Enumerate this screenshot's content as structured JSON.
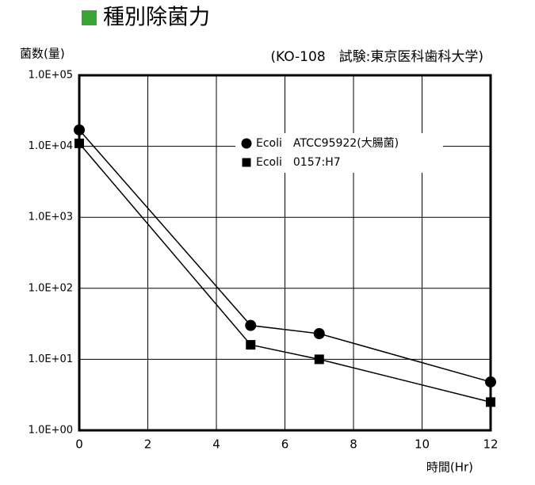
{
  "chart_data": {
    "type": "line",
    "title": "種別除菌力",
    "subtitle": "(KO-108　試験:東京医科歯科大学)",
    "y_label": "菌数(量)",
    "x_label": "時間(Hr)",
    "x": [
      0,
      5,
      7,
      12
    ],
    "series": [
      {
        "name": "Ecoli　ATCC95922(大腸菌)",
        "color": "#000000",
        "marker": "circle",
        "values": [
          17000,
          30,
          23,
          4.8
        ]
      },
      {
        "name": "Ecoli　0157:H7",
        "color": "#000000",
        "marker": "square",
        "values": [
          11000,
          16,
          10,
          2.5
        ]
      }
    ],
    "xlim": [
      0,
      12
    ],
    "xticks": [
      0,
      2,
      4,
      6,
      8,
      10,
      12
    ],
    "ylim": [
      1,
      100000
    ],
    "log_y": true,
    "yticks": [
      {
        "value": 1,
        "label": "1.0E+00"
      },
      {
        "value": 10,
        "label": "1.0E+01"
      },
      {
        "value": 100,
        "label": "1.0E+02"
      },
      {
        "value": 1000,
        "label": "1.0E+03"
      },
      {
        "value": 10000,
        "label": "1.0E+04"
      },
      {
        "value": 100000,
        "label": "1.0E+05"
      }
    ],
    "grid": true,
    "title_color": "#3aa535"
  }
}
